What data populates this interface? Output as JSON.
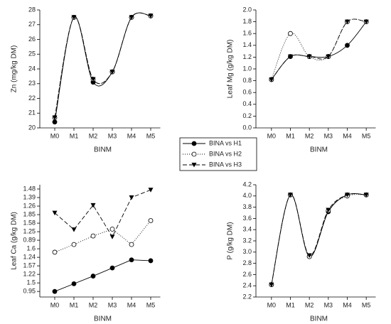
{
  "legend": [
    "BINA vs H1",
    "BINA vs H2",
    "BINA vs H3"
  ],
  "chart_data": [
    {
      "type": "line",
      "smooth": true,
      "y_label": "Zn (mg/kg DM)",
      "x_label": "BINM",
      "categories": [
        "M0",
        "M1",
        "M2",
        "M3",
        "M4",
        "M5"
      ],
      "ylim": [
        20,
        28
      ],
      "yticks": [
        20,
        21,
        22,
        23,
        24,
        25,
        26,
        27,
        28
      ],
      "series": [
        {
          "marker": "filled-circle",
          "dash": "solid",
          "color": "#000000",
          "values": [
            20.4,
            27.5,
            23.1,
            23.8,
            27.5,
            27.6
          ]
        },
        {
          "marker": "open-circle",
          "dash": "dotted",
          "color": "#000000",
          "values": [
            20.7,
            27.5,
            23.3,
            23.8,
            27.5,
            27.6
          ]
        },
        {
          "marker": "triangle-down",
          "dash": "dashed",
          "color": "#000000",
          "values": [
            20.7,
            27.5,
            23.3,
            23.8,
            27.5,
            27.6
          ]
        }
      ]
    },
    {
      "type": "line",
      "smooth": true,
      "y_label": "Leaf Mg (g/kg DM)",
      "x_label": "BINM",
      "categories": [
        "M0",
        "M1",
        "M2",
        "M3",
        "M4",
        "M5"
      ],
      "ylim": [
        0,
        2
      ],
      "yticks": [
        {
          "value": 0,
          "label": "0.0"
        },
        0.2,
        0.4,
        0.6,
        0.8,
        {
          "value": 1,
          "label": "1.0"
        },
        1.2,
        1.4,
        1.6,
        1.8,
        {
          "value": 2,
          "label": "2.0"
        }
      ],
      "series": [
        {
          "marker": "filled-circle",
          "dash": "solid",
          "color": "#000000",
          "values": [
            0.82,
            1.21,
            1.21,
            1.21,
            1.4,
            1.8
          ]
        },
        {
          "marker": "open-circle",
          "dash": "dotted",
          "color": "#000000",
          "values": [
            0.82,
            1.6,
            1.21,
            1.21,
            1.8,
            1.8
          ]
        },
        {
          "marker": "triangle-down",
          "dash": "dashed",
          "color": "#000000",
          "values": [
            0.82,
            1.21,
            1.21,
            1.21,
            1.8,
            1.8
          ]
        }
      ]
    },
    {
      "type": "line",
      "smooth": false,
      "y_label": "Leaf Ca (g/kg DM)",
      "x_label": "BINM",
      "categories": [
        "M0",
        "M1",
        "M2",
        "M3",
        "M4",
        "M5"
      ],
      "ylim": [
        -0.65,
        12.5
      ],
      "yticks": [
        {
          "value": 0,
          "label": "0.95"
        },
        {
          "value": 1,
          "label": "1.5"
        },
        {
          "value": 2,
          "label": "1.22"
        },
        {
          "value": 3,
          "label": "1.57"
        },
        {
          "value": 4,
          "label": "1.24"
        },
        {
          "value": 5,
          "label": "1.6"
        },
        {
          "value": 6,
          "label": "0.89"
        },
        {
          "value": 7,
          "label": "1.25"
        },
        {
          "value": 8,
          "label": "1.58"
        },
        {
          "value": 9,
          "label": "1.85"
        },
        {
          "value": 10,
          "label": "1.26"
        },
        {
          "value": 11,
          "label": "1.39"
        },
        {
          "value": 12,
          "label": "1.48"
        }
      ],
      "series": [
        {
          "marker": "filled-circle",
          "dash": "solid",
          "color": "#000000",
          "values": [
            0,
            0.9,
            1.8,
            2.75,
            3.7,
            3.6
          ]
        },
        {
          "marker": "open-circle",
          "dash": "dotted",
          "color": "#000000",
          "values": [
            4.6,
            5.5,
            6.5,
            7.3,
            5.5,
            8.3
          ]
        },
        {
          "marker": "triangle-down",
          "dash": "dashed",
          "color": "#000000",
          "values": [
            9.2,
            7.25,
            10.1,
            6.4,
            11,
            11.9
          ]
        }
      ]
    },
    {
      "type": "line",
      "smooth": true,
      "y_label": "P (g/kg DM)",
      "x_label": "BINM",
      "categories": [
        "M0",
        "M1",
        "M2",
        "M3",
        "M4",
        "M5"
      ],
      "ylim": [
        2.2,
        4.2
      ],
      "yticks": [
        2.2,
        2.4,
        2.6,
        2.8,
        {
          "value": 3,
          "label": "3.0"
        },
        3.2,
        3.4,
        3.6,
        3.8,
        {
          "value": 4,
          "label": "4.0"
        },
        4.2
      ],
      "series": [
        {
          "marker": "filled-circle",
          "dash": "solid",
          "color": "#000000",
          "values": [
            2.42,
            4.02,
            2.92,
            3.72,
            4.02,
            4.02
          ]
        },
        {
          "marker": "open-circle",
          "dash": "dotted",
          "color": "#000000",
          "values": [
            2.42,
            4.02,
            2.92,
            3.74,
            4.0,
            4.02
          ]
        },
        {
          "marker": "triangle-down",
          "dash": "dashed",
          "color": "#000000",
          "values": [
            2.42,
            4.02,
            2.94,
            3.75,
            4.02,
            4.02
          ]
        }
      ]
    }
  ]
}
